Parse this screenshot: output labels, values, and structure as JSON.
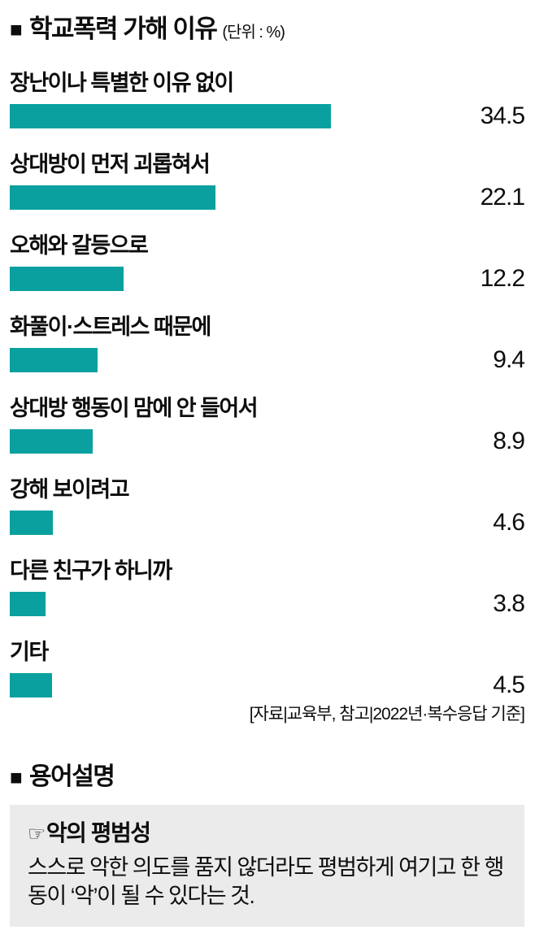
{
  "colors": {
    "bar": "#0aa0a0",
    "term_box_bg": "#ebebeb",
    "text": "#0d0d0d"
  },
  "icons": {
    "square_bullet": "■",
    "pointing_hand": "☞"
  },
  "chart": {
    "title": "학교폭력 가해 이유",
    "unit": "(단위 : %)",
    "source": "[자료|교육부, 참고|2022년·복수응답 기준]"
  },
  "chart_data": {
    "type": "bar",
    "orientation": "horizontal",
    "title": "학교폭력 가해 이유",
    "unit": "%",
    "categories": [
      "장난이나 특별한 이유 없이",
      "상대방이 먼저 괴롭혀서",
      "오해와 갈등으로",
      "화풀이·스트레스 때문에",
      "상대방 행동이 맘에 안 들어서",
      "강해 보이려고",
      "다른 친구가 하니까",
      "기타"
    ],
    "values": [
      34.5,
      22.1,
      12.2,
      9.4,
      8.9,
      4.6,
      3.8,
      4.5
    ],
    "value_labels_shown": true,
    "grid": false,
    "legend": false,
    "xlim": [
      0,
      55
    ]
  },
  "glossary": {
    "title": "용어설명",
    "term": "악의 평범성",
    "definition": "스스로 악한 의도를 품지 않더라도 평범하게 여기고 한 행동이 ‘악’이 될 수 있다는 것."
  }
}
